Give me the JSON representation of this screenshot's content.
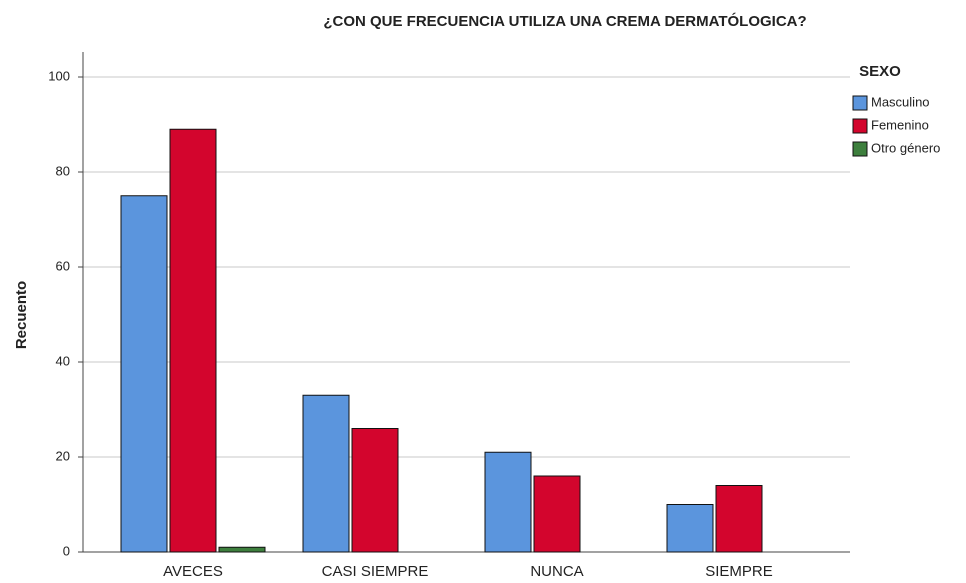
{
  "chart_data": {
    "type": "bar",
    "title": "¿CON QUE FRECUENCIA UTILIZA UNA CREMA DERMATÓLOGICA?",
    "y_label": "Recuento",
    "legend_title": "SEXO",
    "categories": [
      "AVECES",
      "CASI SIEMPRE",
      "NUNCA",
      "SIEMPRE"
    ],
    "series": [
      {
        "name": "Masculino",
        "color": "#5b95dd",
        "values": [
          75,
          33,
          21,
          10
        ]
      },
      {
        "name": "Femenino",
        "color": "#d3052d",
        "values": [
          89,
          26,
          16,
          14
        ]
      },
      {
        "name": "Otro género",
        "color": "#3d7f3d",
        "values": [
          1,
          0,
          0,
          0
        ]
      }
    ],
    "ylim": [
      0,
      100
    ],
    "yticks": [
      0,
      20,
      40,
      60,
      80,
      100
    ],
    "grid": true,
    "legend": "right"
  }
}
